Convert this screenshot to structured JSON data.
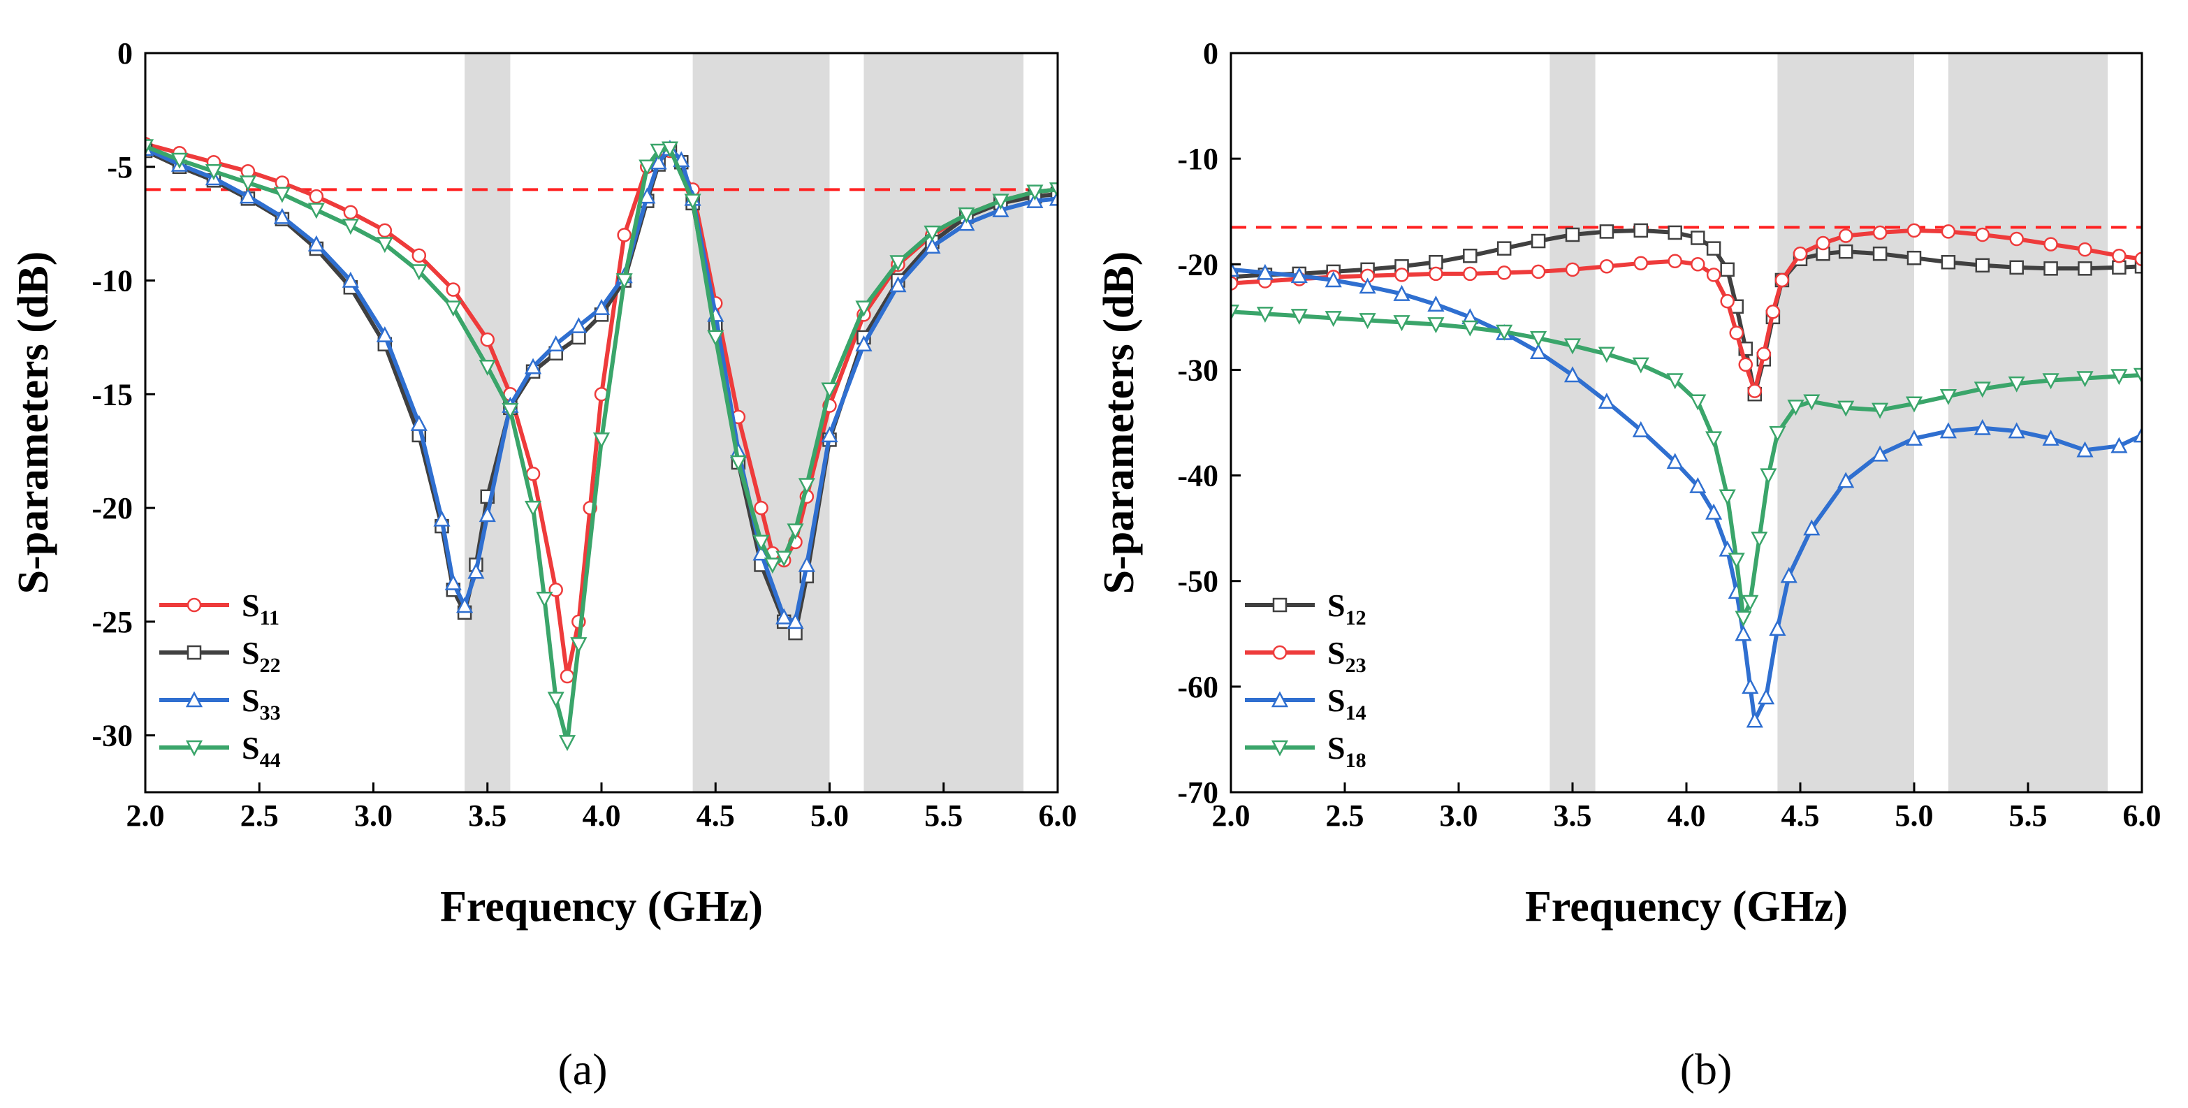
{
  "chart_data": [
    {
      "type": "line",
      "panel_label": "(a)",
      "xlabel": "Frequency (GHz)",
      "ylabel": "S-parameters (dB)",
      "xlim": [
        2.0,
        6.0
      ],
      "ylim": [
        -32.5,
        0
      ],
      "xticks": [
        2.0,
        2.5,
        3.0,
        3.5,
        4.0,
        4.5,
        5.0,
        5.5,
        6.0
      ],
      "xtick_labels": [
        "2.0",
        "2.5",
        "3.0",
        "3.5",
        "4.0",
        "4.5",
        "5.0",
        "5.5",
        "6.0"
      ],
      "yticks": [
        0,
        -5,
        -10,
        -15,
        -20,
        -25,
        -30
      ],
      "ytick_labels": [
        "0",
        "-5",
        "-10",
        "-15",
        "-20",
        "-25",
        "-30"
      ],
      "shaded_bands": [
        [
          3.4,
          3.6
        ],
        [
          4.4,
          5.0
        ],
        [
          5.15,
          5.85
        ]
      ],
      "shade_color": "#dcdcdc",
      "reference_line": {
        "y": -6,
        "color": "#ff2020",
        "style": "dashed"
      },
      "legend_position": "lower-left",
      "series": [
        {
          "name": "S11",
          "label_main": "S",
          "label_sub": "11",
          "color": "#ee3b3b",
          "marker": "circle",
          "x": [
            2.0,
            2.15,
            2.3,
            2.45,
            2.6,
            2.75,
            2.9,
            3.05,
            3.2,
            3.35,
            3.5,
            3.6,
            3.7,
            3.8,
            3.85,
            3.9,
            3.95,
            4.0,
            4.1,
            4.2,
            4.3,
            4.4,
            4.5,
            4.6,
            4.7,
            4.75,
            4.8,
            4.85,
            4.9,
            5.0,
            5.15,
            5.3,
            5.45,
            5.6,
            5.75,
            5.9,
            6.0
          ],
          "y": [
            -4.0,
            -4.4,
            -4.8,
            -5.2,
            -5.7,
            -6.3,
            -7.0,
            -7.8,
            -8.9,
            -10.4,
            -12.6,
            -15.0,
            -18.5,
            -23.6,
            -27.4,
            -25.0,
            -20.0,
            -15.0,
            -8.0,
            -5.0,
            -4.3,
            -6.0,
            -11.0,
            -16.0,
            -20.0,
            -22.0,
            -22.3,
            -21.5,
            -19.5,
            -15.5,
            -11.5,
            -9.3,
            -8.0,
            -7.1,
            -6.5,
            -6.1,
            -6.0
          ]
        },
        {
          "name": "S22",
          "label_main": "S",
          "label_sub": "22",
          "color": "#404040",
          "marker": "square",
          "x": [
            2.0,
            2.15,
            2.3,
            2.45,
            2.6,
            2.75,
            2.9,
            3.05,
            3.2,
            3.3,
            3.35,
            3.4,
            3.45,
            3.5,
            3.6,
            3.7,
            3.8,
            3.9,
            4.0,
            4.1,
            4.2,
            4.25,
            4.3,
            4.35,
            4.4,
            4.5,
            4.6,
            4.7,
            4.8,
            4.85,
            4.9,
            5.0,
            5.15,
            5.3,
            5.45,
            5.6,
            5.75,
            5.9,
            6.0
          ],
          "y": [
            -4.3,
            -5.0,
            -5.6,
            -6.4,
            -7.3,
            -8.6,
            -10.3,
            -12.8,
            -16.8,
            -20.8,
            -23.6,
            -24.6,
            -22.5,
            -19.5,
            -15.6,
            -14.0,
            -13.2,
            -12.5,
            -11.5,
            -10.0,
            -6.5,
            -4.9,
            -4.2,
            -4.8,
            -6.6,
            -12.0,
            -18.0,
            -22.5,
            -25.0,
            -25.5,
            -23.0,
            -17.0,
            -12.5,
            -10.0,
            -8.3,
            -7.2,
            -6.6,
            -6.3,
            -6.2
          ]
        },
        {
          "name": "S33",
          "label_main": "S",
          "label_sub": "33",
          "color": "#2f6fd0",
          "marker": "triangle-up",
          "x": [
            2.0,
            2.15,
            2.3,
            2.45,
            2.6,
            2.75,
            2.9,
            3.05,
            3.2,
            3.3,
            3.35,
            3.4,
            3.45,
            3.5,
            3.6,
            3.7,
            3.8,
            3.9,
            4.0,
            4.1,
            4.2,
            4.25,
            4.3,
            4.35,
            4.4,
            4.5,
            4.6,
            4.7,
            4.8,
            4.85,
            4.9,
            5.0,
            5.15,
            5.3,
            5.45,
            5.6,
            5.75,
            5.9,
            6.0
          ],
          "y": [
            -4.2,
            -4.9,
            -5.5,
            -6.3,
            -7.2,
            -8.4,
            -10.0,
            -12.4,
            -16.3,
            -20.5,
            -23.3,
            -24.3,
            -22.8,
            -20.3,
            -15.5,
            -13.8,
            -12.8,
            -12.0,
            -11.2,
            -9.8,
            -6.3,
            -4.8,
            -4.2,
            -4.7,
            -6.4,
            -11.5,
            -17.5,
            -22.0,
            -24.8,
            -25.0,
            -22.5,
            -16.8,
            -12.8,
            -10.2,
            -8.5,
            -7.5,
            -6.9,
            -6.5,
            -6.4
          ]
        },
        {
          "name": "S44",
          "label_main": "S",
          "label_sub": "44",
          "color": "#3aa56a",
          "marker": "triangle-down",
          "x": [
            2.0,
            2.15,
            2.3,
            2.45,
            2.6,
            2.75,
            2.9,
            3.05,
            3.2,
            3.35,
            3.5,
            3.6,
            3.7,
            3.75,
            3.8,
            3.85,
            3.9,
            4.0,
            4.1,
            4.2,
            4.25,
            4.3,
            4.4,
            4.5,
            4.6,
            4.7,
            4.75,
            4.8,
            4.85,
            4.9,
            5.0,
            5.15,
            5.3,
            5.45,
            5.6,
            5.75,
            5.9,
            6.0
          ],
          "y": [
            -4.1,
            -4.7,
            -5.2,
            -5.7,
            -6.2,
            -6.9,
            -7.6,
            -8.4,
            -9.6,
            -11.2,
            -13.8,
            -15.7,
            -20.0,
            -24.0,
            -28.4,
            -30.3,
            -26.0,
            -17.0,
            -10.0,
            -5.0,
            -4.3,
            -4.2,
            -6.5,
            -12.5,
            -18.0,
            -21.5,
            -22.5,
            -22.2,
            -21.0,
            -19.0,
            -14.8,
            -11.2,
            -9.2,
            -7.9,
            -7.1,
            -6.5,
            -6.1,
            -6.0
          ]
        }
      ]
    },
    {
      "type": "line",
      "panel_label": "(b)",
      "xlabel": "Frequency (GHz)",
      "ylabel": "S-parameters (dB)",
      "xlim": [
        2.0,
        6.0
      ],
      "ylim": [
        -70,
        0
      ],
      "xticks": [
        2.0,
        2.5,
        3.0,
        3.5,
        4.0,
        4.5,
        5.0,
        5.5,
        6.0
      ],
      "xtick_labels": [
        "2.0",
        "2.5",
        "3.0",
        "3.5",
        "4.0",
        "4.5",
        "5.0",
        "5.5",
        "6.0"
      ],
      "yticks": [
        0,
        -10,
        -20,
        -30,
        -40,
        -50,
        -60,
        -70
      ],
      "ytick_labels": [
        "0",
        "-10",
        "-20",
        "-30",
        "-40",
        "-50",
        "-60",
        "-70"
      ],
      "shaded_bands": [
        [
          3.4,
          3.6
        ],
        [
          4.4,
          5.0
        ],
        [
          5.15,
          5.85
        ]
      ],
      "shade_color": "#dcdcdc",
      "reference_line": {
        "y": -16.5,
        "color": "#ff2020",
        "style": "dashed"
      },
      "legend_position": "lower-left",
      "series": [
        {
          "name": "S12",
          "label_main": "S",
          "label_sub": "12",
          "color": "#404040",
          "marker": "square",
          "x": [
            2.0,
            2.15,
            2.3,
            2.45,
            2.6,
            2.75,
            2.9,
            3.05,
            3.2,
            3.35,
            3.5,
            3.65,
            3.8,
            3.95,
            4.05,
            4.12,
            4.18,
            4.22,
            4.26,
            4.3,
            4.34,
            4.38,
            4.42,
            4.5,
            4.6,
            4.7,
            4.85,
            5.0,
            5.15,
            5.3,
            5.45,
            5.6,
            5.75,
            5.9,
            6.0
          ],
          "y": [
            -21.2,
            -21.0,
            -20.9,
            -20.7,
            -20.5,
            -20.2,
            -19.8,
            -19.2,
            -18.5,
            -17.8,
            -17.2,
            -16.9,
            -16.8,
            -17.0,
            -17.5,
            -18.5,
            -20.5,
            -24.0,
            -28.0,
            -32.3,
            -29.0,
            -25.0,
            -21.5,
            -19.5,
            -19.0,
            -18.8,
            -19.0,
            -19.4,
            -19.8,
            -20.1,
            -20.3,
            -20.4,
            -20.4,
            -20.3,
            -20.2
          ]
        },
        {
          "name": "S23",
          "label_main": "S",
          "label_sub": "23",
          "color": "#ee3b3b",
          "marker": "circle",
          "x": [
            2.0,
            2.15,
            2.3,
            2.45,
            2.6,
            2.75,
            2.9,
            3.05,
            3.2,
            3.35,
            3.5,
            3.65,
            3.8,
            3.95,
            4.05,
            4.12,
            4.18,
            4.22,
            4.26,
            4.3,
            4.34,
            4.38,
            4.42,
            4.5,
            4.6,
            4.7,
            4.85,
            5.0,
            5.15,
            5.3,
            5.45,
            5.6,
            5.75,
            5.9,
            6.0
          ],
          "y": [
            -21.8,
            -21.6,
            -21.4,
            -21.2,
            -21.1,
            -21.0,
            -20.9,
            -20.9,
            -20.8,
            -20.7,
            -20.5,
            -20.2,
            -19.9,
            -19.7,
            -20.0,
            -21.0,
            -23.5,
            -26.5,
            -29.5,
            -32.0,
            -28.5,
            -24.5,
            -21.5,
            -19.0,
            -18.0,
            -17.3,
            -17.0,
            -16.8,
            -16.9,
            -17.2,
            -17.6,
            -18.1,
            -18.6,
            -19.2,
            -19.5
          ]
        },
        {
          "name": "S14",
          "label_main": "S",
          "label_sub": "14",
          "color": "#2f6fd0",
          "marker": "triangle-up",
          "x": [
            2.0,
            2.15,
            2.3,
            2.45,
            2.6,
            2.75,
            2.9,
            3.05,
            3.2,
            3.35,
            3.5,
            3.65,
            3.8,
            3.95,
            4.05,
            4.12,
            4.18,
            4.22,
            4.25,
            4.28,
            4.3,
            4.35,
            4.4,
            4.45,
            4.55,
            4.7,
            4.85,
            5.0,
            5.15,
            5.3,
            5.45,
            5.6,
            5.75,
            5.9,
            6.0
          ],
          "y": [
            -20.5,
            -20.8,
            -21.1,
            -21.5,
            -22.1,
            -22.8,
            -23.8,
            -25.0,
            -26.5,
            -28.3,
            -30.5,
            -33.0,
            -35.7,
            -38.7,
            -41.0,
            -43.5,
            -47.0,
            -51.0,
            -55.0,
            -60.0,
            -63.2,
            -61.0,
            -54.5,
            -49.5,
            -45.0,
            -40.5,
            -38.0,
            -36.5,
            -35.8,
            -35.5,
            -35.8,
            -36.5,
            -37.6,
            -37.2,
            -36.2
          ]
        },
        {
          "name": "S18",
          "label_main": "S",
          "label_sub": "18",
          "color": "#3aa56a",
          "marker": "triangle-down",
          "x": [
            2.0,
            2.15,
            2.3,
            2.45,
            2.6,
            2.75,
            2.9,
            3.05,
            3.2,
            3.35,
            3.5,
            3.65,
            3.8,
            3.95,
            4.05,
            4.12,
            4.18,
            4.22,
            4.25,
            4.28,
            4.32,
            4.36,
            4.4,
            4.48,
            4.55,
            4.7,
            4.85,
            5.0,
            5.15,
            5.3,
            5.45,
            5.6,
            5.75,
            5.9,
            6.0
          ],
          "y": [
            -24.5,
            -24.7,
            -24.9,
            -25.1,
            -25.3,
            -25.5,
            -25.7,
            -26.0,
            -26.4,
            -27.0,
            -27.7,
            -28.5,
            -29.5,
            -31.0,
            -33.0,
            -36.5,
            -42.0,
            -48.0,
            -53.5,
            -52.0,
            -46.0,
            -40.0,
            -36.0,
            -33.5,
            -33.0,
            -33.6,
            -33.8,
            -33.2,
            -32.5,
            -31.8,
            -31.3,
            -31.0,
            -30.8,
            -30.6,
            -30.5
          ]
        }
      ]
    }
  ]
}
